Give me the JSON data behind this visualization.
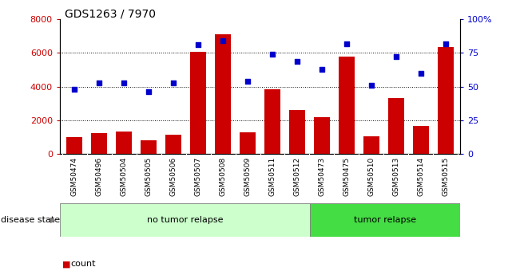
{
  "title": "GDS1263 / 7970",
  "samples": [
    "GSM50474",
    "GSM50496",
    "GSM50504",
    "GSM50505",
    "GSM50506",
    "GSM50507",
    "GSM50508",
    "GSM50509",
    "GSM50511",
    "GSM50512",
    "GSM50473",
    "GSM50475",
    "GSM50510",
    "GSM50513",
    "GSM50514",
    "GSM50515"
  ],
  "counts": [
    1000,
    1250,
    1350,
    800,
    1150,
    6050,
    7100,
    1300,
    3850,
    2600,
    2200,
    5800,
    1050,
    3300,
    1650,
    6350
  ],
  "percentiles": [
    48,
    53,
    53,
    46,
    53,
    81,
    84,
    54,
    74,
    69,
    63,
    82,
    51,
    72,
    60,
    82
  ],
  "no_tumor_count": 10,
  "tumor_count": 6,
  "bar_color": "#cc0000",
  "dot_color": "#0000cc",
  "no_tumor_color": "#ccffcc",
  "tumor_color": "#44dd44",
  "ylim_left": [
    0,
    8000
  ],
  "ylim_right": [
    0,
    100
  ],
  "yticks_left": [
    0,
    2000,
    4000,
    6000,
    8000
  ],
  "yticks_right": [
    0,
    25,
    50,
    75,
    100
  ],
  "bg_color": "#ffffff",
  "ticklabel_bg": "#d0d0d0",
  "grid_yticks": [
    2000,
    4000,
    6000
  ]
}
